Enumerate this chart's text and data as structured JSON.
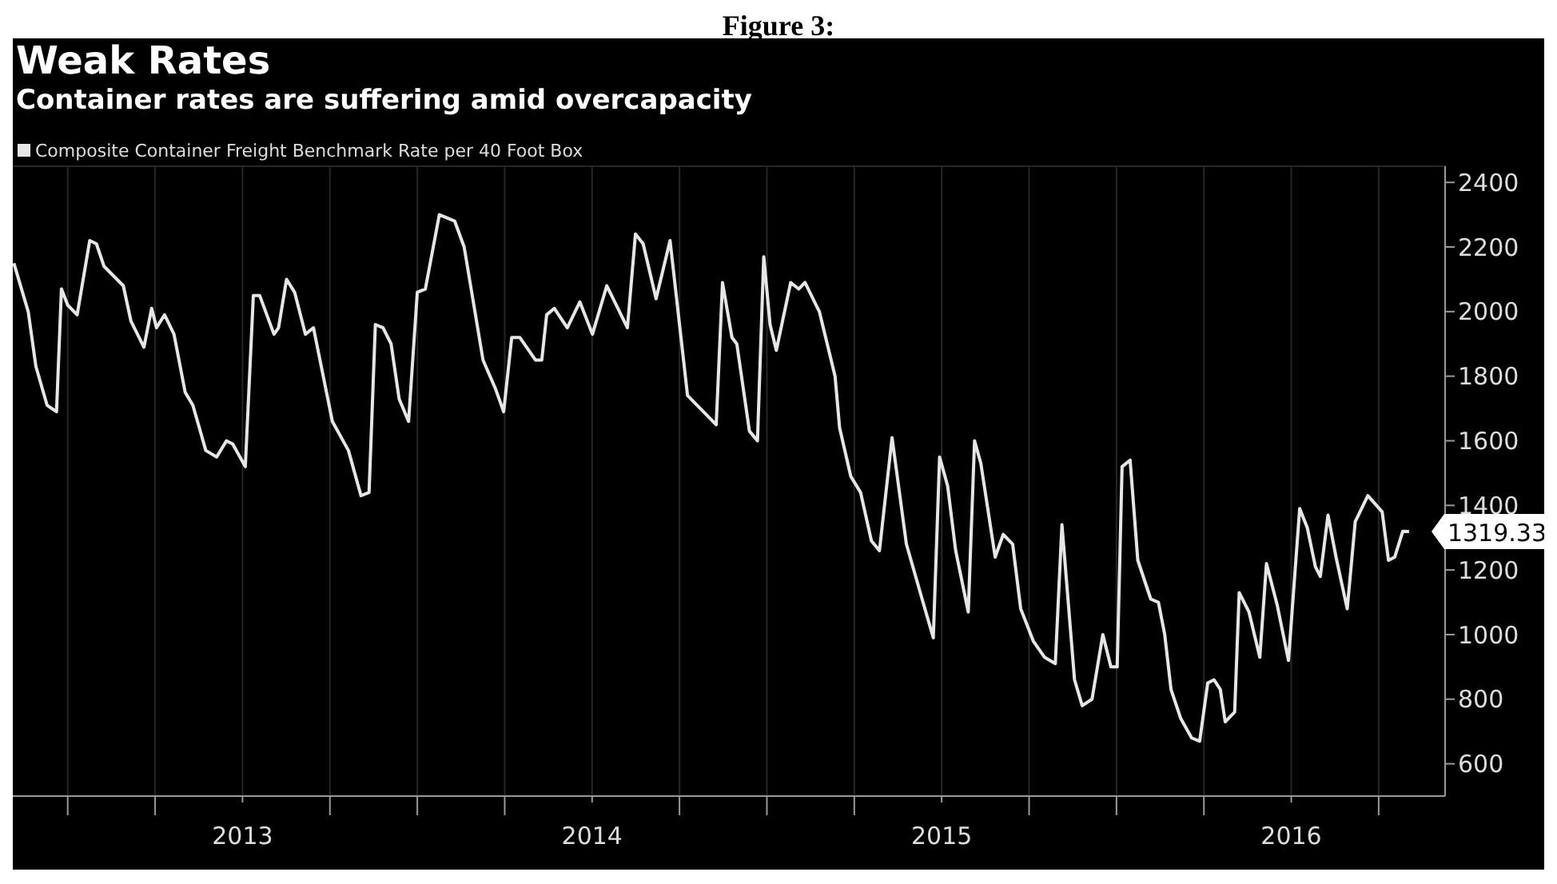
{
  "chart_data": {
    "type": "line",
    "title": "Weak Rates",
    "subtitle": "Container rates are suffering amid overcapacity",
    "annotations": [
      "Figure 3:"
    ],
    "x": [
      2012.846,
      2012.887,
      2012.909,
      2012.941,
      2012.968,
      2012.982,
      2013.0,
      2013.027,
      2013.063,
      2013.082,
      2013.104,
      2013.159,
      2013.181,
      2013.218,
      2013.24,
      2013.254,
      2013.277,
      2013.304,
      2013.336,
      2013.358,
      2013.395,
      2013.426,
      2013.454,
      2013.472,
      2013.508,
      2013.531,
      2013.549,
      2013.59,
      2013.603,
      2013.626,
      2013.649,
      2013.68,
      2013.703,
      2013.757,
      2013.803,
      2013.839,
      2013.862,
      2013.88,
      2013.902,
      2013.925,
      2013.948,
      2013.975,
      2014.0,
      2014.023,
      2014.063,
      2014.107,
      2014.134,
      2014.188,
      2014.224,
      2014.247,
      2014.27,
      2014.293,
      2014.338,
      2014.356,
      2014.37,
      2014.392,
      2014.429,
      2014.465,
      2014.501,
      2014.542,
      2014.601,
      2014.624,
      2014.646,
      2014.683,
      2014.723,
      2014.773,
      2014.855,
      2014.873,
      2014.9,
      2014.914,
      2014.95,
      2014.973,
      2014.991,
      2015.009,
      2015.027,
      2015.068,
      2015.091,
      2015.109,
      2015.15,
      2015.195,
      2015.208,
      2015.24,
      2015.268,
      2015.299,
      2015.322,
      2015.358,
      2015.399,
      2015.444,
      2015.476,
      2015.494,
      2015.517,
      2015.54,
      2015.576,
      2015.594,
      2015.612,
      2015.653,
      2015.676,
      2015.703,
      2015.726,
      2015.762,
      2015.794,
      2015.825,
      2015.844,
      2015.88,
      2015.902,
      2015.93,
      2015.961,
      2015.984,
      2016.002,
      2016.016,
      2016.039,
      2016.061,
      2016.098,
      2016.12,
      2016.138,
      2016.156,
      2016.184,
      2016.215,
      2016.238,
      2016.261,
      2016.279,
      2016.297,
      2016.311,
      2016.338,
      2016.351,
      2016.379,
      2016.41,
      2016.429,
      2016.46,
      2016.492,
      2016.524,
      2016.546,
      2016.569,
      2016.583,
      2016.605,
      2016.628,
      2016.66,
      2016.683,
      2016.719,
      2016.76,
      2016.778,
      2016.796,
      2016.819,
      2016.837
    ],
    "series": [
      {
        "name": "Composite Container Freight Benchmark Rate per 40 Foot Box",
        "color": "#e6e6e6",
        "values": [
          2150,
          2000,
          1830,
          1710,
          1690,
          2070,
          2020,
          1990,
          2220,
          2210,
          2140,
          2080,
          1970,
          1890,
          2010,
          1950,
          1990,
          1930,
          1750,
          1710,
          1570,
          1550,
          1600,
          1590,
          1520,
          2050,
          2050,
          1930,
          1950,
          2100,
          2060,
          1930,
          1950,
          1660,
          1570,
          1430,
          1440,
          1960,
          1950,
          1900,
          1730,
          1660,
          2060,
          2070,
          2300,
          2280,
          2200,
          1850,
          1760,
          1690,
          1920,
          1920,
          1850,
          1850,
          1990,
          2010,
          1950,
          2030,
          1930,
          2080,
          1950,
          2240,
          2210,
          2040,
          2220,
          1740,
          1650,
          2090,
          1920,
          1900,
          1630,
          1600,
          2170,
          1960,
          1880,
          2090,
          2070,
          2090,
          2000,
          1800,
          1640,
          1490,
          1440,
          1290,
          1260,
          1610,
          1280,
          1110,
          990,
          1550,
          1460,
          1260,
          1070,
          1600,
          1530,
          1240,
          1310,
          1280,
          1080,
          980,
          930,
          910,
          1340,
          860,
          780,
          800,
          1000,
          900,
          900,
          1520,
          1540,
          1230,
          1110,
          1100,
          1000,
          830,
          740,
          680,
          670,
          850,
          860,
          830,
          730,
          760,
          1130,
          1070,
          930,
          1220,
          1090,
          920,
          1390,
          1330,
          1210,
          1180,
          1370,
          1240,
          1080,
          1350,
          1430,
          1380,
          1230,
          1240,
          1320,
          1319.33
        ],
        "value_labels": [
          null,
          null,
          null,
          null,
          null,
          null,
          null,
          null,
          null,
          null,
          null,
          null,
          null,
          null,
          null,
          null,
          null,
          null,
          null,
          null,
          null,
          null,
          null,
          null,
          null,
          null,
          null,
          null,
          null,
          null,
          null,
          null,
          null,
          null,
          null,
          null,
          null,
          null,
          null,
          null,
          null,
          null,
          null,
          null,
          null,
          null,
          null,
          null,
          null,
          null,
          null,
          null,
          null,
          null,
          null,
          null,
          null,
          null,
          null,
          null,
          null,
          null,
          null,
          null,
          null,
          null,
          null,
          null,
          null,
          null,
          null,
          null,
          null,
          null,
          null,
          null,
          null,
          null,
          null,
          null,
          null,
          null,
          null,
          null,
          null,
          null,
          null,
          null,
          null,
          null,
          null,
          null,
          null,
          null,
          null,
          null,
          null,
          null,
          null,
          null,
          null,
          null,
          null,
          null,
          null,
          null,
          null,
          null,
          null,
          null,
          null,
          null,
          null,
          null,
          null,
          null,
          null,
          null,
          null,
          null,
          null,
          null,
          null,
          null,
          null,
          null,
          null,
          null,
          null,
          null,
          null,
          null,
          null,
          null,
          null,
          null,
          null,
          null,
          null,
          null,
          null,
          null,
          null,
          "1319.33"
        ]
      }
    ],
    "xlim": [
      2012.82,
      2016.94
    ],
    "xticks": [
      {
        "value": 2013,
        "label": null
      },
      {
        "value": 2013.25,
        "label": null
      },
      {
        "value": 2013.5,
        "label": "2013"
      },
      {
        "value": 2013.75,
        "label": null
      },
      {
        "value": 2014,
        "label": null
      },
      {
        "value": 2014.25,
        "label": null
      },
      {
        "value": 2014.5,
        "label": "2014"
      },
      {
        "value": 2014.75,
        "label": null
      },
      {
        "value": 2015,
        "label": null
      },
      {
        "value": 2015.25,
        "label": null
      },
      {
        "value": 2015.5,
        "label": "2015"
      },
      {
        "value": 2015.75,
        "label": null
      },
      {
        "value": 2016,
        "label": null
      },
      {
        "value": 2016.25,
        "label": null
      },
      {
        "value": 2016.5,
        "label": "2016"
      },
      {
        "value": 2016.75,
        "label": null
      }
    ],
    "ylim": [
      500,
      2450
    ],
    "yticks": [
      600,
      800,
      1000,
      1200,
      1400,
      1600,
      1800,
      2000,
      2200,
      2400
    ],
    "grid": true,
    "legend": "top left",
    "marker": "none",
    "line_style": "solid"
  }
}
